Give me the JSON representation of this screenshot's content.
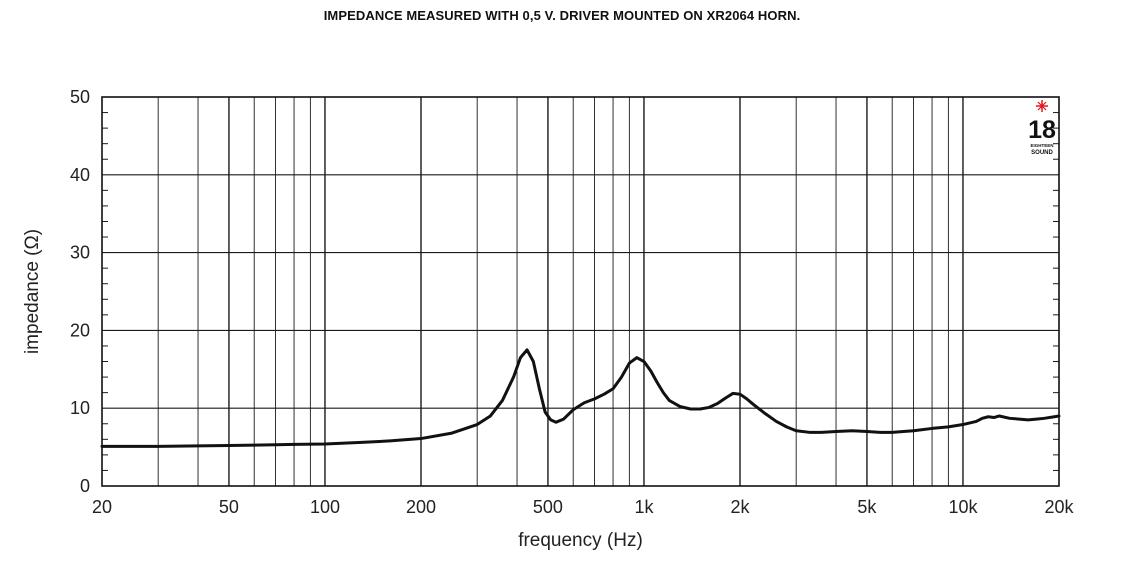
{
  "title": "IMPEDANCE MEASURED WITH 0,5 V. DRIVER MOUNTED ON XR2064 HORN.",
  "logo": {
    "number": "18",
    "small_text_1": "EIGHTEEN",
    "small_text_2": "SOUND",
    "accent_color": "#e0141e"
  },
  "chart_data": {
    "type": "line",
    "title": "IMPEDANCE MEASURED WITH 0,5 V. DRIVER MOUNTED ON XR2064 HORN.",
    "xlabel": "frequency (Hz)",
    "ylabel": "impedance (Ω)",
    "xscale": "log",
    "xlim": [
      20,
      20000
    ],
    "ylim": [
      0,
      50
    ],
    "x_tick_values": [
      20,
      50,
      100,
      200,
      500,
      1000,
      2000,
      5000,
      10000,
      20000
    ],
    "x_tick_labels": [
      "20",
      "50",
      "100",
      "200",
      "500",
      "1k",
      "2k",
      "5k",
      "10k",
      "20k"
    ],
    "y_tick_values": [
      0,
      10,
      20,
      30,
      40,
      50
    ],
    "y_tick_labels": [
      "0",
      "10",
      "20",
      "30",
      "40",
      "50"
    ],
    "grid": true,
    "line_color": "#111111",
    "series": [
      {
        "x": [
          20,
          30,
          40,
          50,
          60,
          70,
          80,
          100,
          130,
          160,
          200,
          250,
          300,
          330,
          360,
          390,
          410,
          430,
          450,
          470,
          490,
          510,
          530,
          560,
          600,
          650,
          700,
          750,
          800,
          850,
          900,
          950,
          1000,
          1050,
          1100,
          1150,
          1200,
          1300,
          1400,
          1500,
          1600,
          1700,
          1800,
          1900,
          2000,
          2100,
          2200,
          2400,
          2600,
          2800,
          3000,
          3300,
          3600,
          4000,
          4500,
          5000,
          5500,
          6000,
          6500,
          7000,
          8000,
          9000,
          10000,
          11000,
          11500,
          12000,
          12500,
          13000,
          14000,
          15000,
          16000,
          17000,
          18000,
          20000
        ],
        "y": [
          5.1,
          5.1,
          5.15,
          5.2,
          5.25,
          5.3,
          5.35,
          5.4,
          5.6,
          5.8,
          6.1,
          6.8,
          7.9,
          9.0,
          11.0,
          14.0,
          16.5,
          17.5,
          16.0,
          12.5,
          9.5,
          8.5,
          8.2,
          8.6,
          9.8,
          10.7,
          11.2,
          11.8,
          12.5,
          14.0,
          15.8,
          16.5,
          16.0,
          14.8,
          13.3,
          12.0,
          11.0,
          10.2,
          9.9,
          9.9,
          10.1,
          10.6,
          11.3,
          11.9,
          11.8,
          11.2,
          10.5,
          9.3,
          8.3,
          7.6,
          7.1,
          6.9,
          6.9,
          7.0,
          7.1,
          7.0,
          6.9,
          6.9,
          7.0,
          7.1,
          7.4,
          7.6,
          7.9,
          8.3,
          8.7,
          8.9,
          8.8,
          9.0,
          8.7,
          8.6,
          8.5,
          8.6,
          8.7,
          9.0
        ]
      }
    ]
  }
}
